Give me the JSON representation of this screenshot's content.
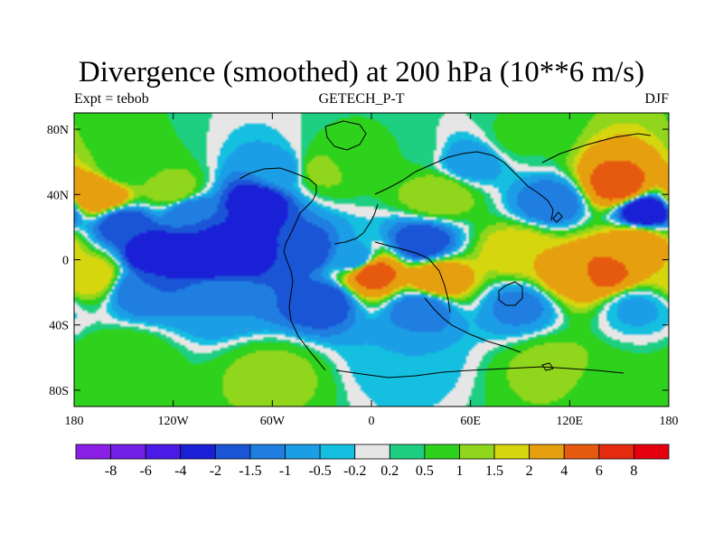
{
  "title": "Divergence (smoothed) at 200 hPa (10**6 m/s)",
  "left_label": "Expt = tebob",
  "center_label": "GETECH_P-T",
  "right_label": "DJF",
  "colors": {
    "ocean_shade": "#e6e6e6",
    "land_line": "#000000",
    "zero_contour": "#ffffff"
  },
  "chart_data": {
    "type": "heatmap",
    "projection": "cylindrical equidistant",
    "lon_range": [
      -180,
      180
    ],
    "lat_range": [
      -90,
      90
    ],
    "x_ticks": [
      {
        "lon": -180,
        "label": "180"
      },
      {
        "lon": -120,
        "label": "120W"
      },
      {
        "lon": -60,
        "label": "60W"
      },
      {
        "lon": 0,
        "label": "0"
      },
      {
        "lon": 60,
        "label": "60E"
      },
      {
        "lon": 120,
        "label": "120E"
      },
      {
        "lon": 180,
        "label": "180"
      }
    ],
    "y_ticks": [
      {
        "lat": 80,
        "label": "80N"
      },
      {
        "lat": 40,
        "label": "40N"
      },
      {
        "lat": 0,
        "label": "0"
      },
      {
        "lat": -40,
        "label": "40S"
      },
      {
        "lat": -80,
        "label": "80S"
      }
    ],
    "colorbar": {
      "labels": [
        "-8",
        "-6",
        "-4",
        "-2",
        "-1.5",
        "-1",
        "-0.5",
        "-0.2",
        "0.2",
        "0.5",
        "1",
        "1.5",
        "2",
        "4",
        "6",
        "8"
      ],
      "colors": [
        "#8a1fe6",
        "#7320e6",
        "#4a1ae6",
        "#1a20d6",
        "#1a55d6",
        "#1f7ee0",
        "#1c9ee6",
        "#14bfe0",
        "#e6e6e6",
        "#1ecf82",
        "#2ed11c",
        "#90d61c",
        "#d6d60f",
        "#e6a00f",
        "#e65a0f",
        "#e62a0f",
        "#e6000f"
      ]
    },
    "field": [
      {
        "lon": -150,
        "lat": 55,
        "value": 0.6
      },
      {
        "lon": -140,
        "lat": 70,
        "value": 0.5
      },
      {
        "lon": -165,
        "lat": 40,
        "value": 4
      },
      {
        "lon": -120,
        "lat": 42,
        "value": 1.5
      },
      {
        "lon": -150,
        "lat": 22,
        "value": -2
      },
      {
        "lon": -110,
        "lat": 30,
        "value": -1.5
      },
      {
        "lon": -70,
        "lat": 35,
        "value": -2.5
      },
      {
        "lon": -55,
        "lat": 55,
        "value": -0.8
      },
      {
        "lon": -30,
        "lat": 55,
        "value": 1.2
      },
      {
        "lon": -10,
        "lat": 62,
        "value": 0.6
      },
      {
        "lon": -130,
        "lat": 3,
        "value": -3
      },
      {
        "lon": -90,
        "lat": 5,
        "value": -3.5
      },
      {
        "lon": -40,
        "lat": 5,
        "value": -2
      },
      {
        "lon": -10,
        "lat": 0,
        "value": -1
      },
      {
        "lon": 30,
        "lat": 10,
        "value": -2
      },
      {
        "lon": 40,
        "lat": 40,
        "value": 1.5
      },
      {
        "lon": 20,
        "lat": 65,
        "value": 0.5
      },
      {
        "lon": 60,
        "lat": 60,
        "value": -0.8
      },
      {
        "lon": 90,
        "lat": 75,
        "value": 0.6
      },
      {
        "lon": 110,
        "lat": 35,
        "value": -1.5
      },
      {
        "lon": 90,
        "lat": 5,
        "value": 2
      },
      {
        "lon": 150,
        "lat": 45,
        "value": 5
      },
      {
        "lon": 165,
        "lat": 30,
        "value": -3
      },
      {
        "lon": 160,
        "lat": 10,
        "value": 3
      },
      {
        "lon": 120,
        "lat": -10,
        "value": 2.5
      },
      {
        "lon": 0,
        "lat": -8,
        "value": 5
      },
      {
        "lon": 40,
        "lat": -12,
        "value": 3
      },
      {
        "lon": 140,
        "lat": -8,
        "value": 4.5
      },
      {
        "lon": -170,
        "lat": -10,
        "value": 2
      },
      {
        "lon": -140,
        "lat": -18,
        "value": -1.5
      },
      {
        "lon": -90,
        "lat": -25,
        "value": -1
      },
      {
        "lon": -30,
        "lat": -25,
        "value": -2
      },
      {
        "lon": 30,
        "lat": -30,
        "value": -1.5
      },
      {
        "lon": 90,
        "lat": -28,
        "value": -1.2
      },
      {
        "lon": 160,
        "lat": -30,
        "value": -0.6
      },
      {
        "lon": -150,
        "lat": -60,
        "value": 1
      },
      {
        "lon": -60,
        "lat": -70,
        "value": 1.2
      },
      {
        "lon": 20,
        "lat": -60,
        "value": -0.5
      },
      {
        "lon": 110,
        "lat": -65,
        "value": 1.2
      },
      {
        "lon": 150,
        "lat": -75,
        "value": 0.6
      }
    ]
  }
}
